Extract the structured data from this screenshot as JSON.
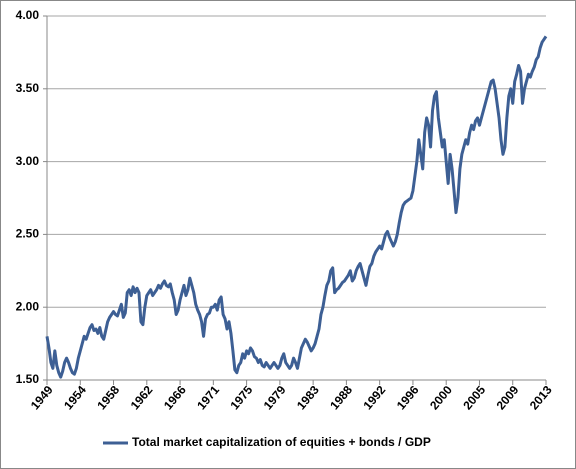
{
  "chart_data": {
    "type": "line",
    "categories": [
      "1949",
      null,
      null,
      null,
      null,
      null,
      null,
      null,
      null,
      null,
      null,
      null,
      null,
      null,
      null,
      null,
      null,
      "1954",
      null,
      null,
      null,
      null,
      null,
      null,
      null,
      null,
      null,
      null,
      null,
      null,
      null,
      null,
      null,
      null,
      "1958",
      null,
      null,
      null,
      null,
      null,
      null,
      null,
      null,
      null,
      null,
      null,
      null,
      null,
      null,
      null,
      null,
      "1962",
      null,
      null,
      null,
      null,
      null,
      null,
      null,
      null,
      null,
      null,
      null,
      null,
      null,
      null,
      null,
      null,
      "1966",
      null,
      null,
      null,
      null,
      null,
      null,
      null,
      null,
      null,
      null,
      null,
      null,
      null,
      null,
      null,
      null,
      "1971",
      null,
      null,
      null,
      null,
      null,
      null,
      null,
      null,
      null,
      null,
      null,
      null,
      null,
      null,
      null,
      null,
      "1975",
      null,
      null,
      null,
      null,
      null,
      null,
      null,
      null,
      null,
      null,
      null,
      null,
      null,
      null,
      null,
      null,
      "1979",
      null,
      null,
      null,
      null,
      null,
      null,
      null,
      null,
      null,
      null,
      null,
      null,
      null,
      null,
      null,
      null,
      "1983",
      null,
      null,
      null,
      null,
      null,
      null,
      null,
      null,
      null,
      null,
      null,
      null,
      null,
      null,
      null,
      null,
      "1988",
      null,
      null,
      null,
      null,
      null,
      null,
      null,
      null,
      null,
      null,
      null,
      null,
      null,
      null,
      null,
      null,
      "1992",
      null,
      null,
      null,
      null,
      null,
      null,
      null,
      null,
      null,
      null,
      null,
      null,
      null,
      null,
      null,
      null,
      "1996",
      null,
      null,
      null,
      null,
      null,
      null,
      null,
      null,
      null,
      null,
      null,
      null,
      null,
      null,
      null,
      null,
      "2000",
      null,
      null,
      null,
      null,
      null,
      null,
      null,
      null,
      null,
      null,
      null,
      null,
      null,
      null,
      null,
      null,
      "2005",
      null,
      null,
      null,
      null,
      null,
      null,
      null,
      null,
      null,
      null,
      null,
      null,
      null,
      null,
      null,
      null,
      "2009",
      null,
      null,
      null,
      null,
      null,
      null,
      null,
      null,
      null,
      null,
      null,
      null,
      null,
      null,
      null,
      null,
      "2013"
    ],
    "series": [
      {
        "name": "Total market capitalization of equities + bonds / GDP",
        "color": "#3d5f94",
        "values": [
          1.8,
          1.72,
          1.62,
          1.58,
          1.7,
          1.6,
          1.55,
          1.52,
          1.56,
          1.62,
          1.65,
          1.62,
          1.58,
          1.55,
          1.54,
          1.58,
          1.65,
          1.7,
          1.75,
          1.8,
          1.78,
          1.82,
          1.86,
          1.88,
          1.84,
          1.85,
          1.82,
          1.86,
          1.8,
          1.78,
          1.84,
          1.9,
          1.93,
          1.95,
          1.97,
          1.95,
          1.94,
          1.98,
          2.02,
          1.93,
          1.96,
          2.1,
          2.12,
          2.08,
          2.14,
          2.1,
          2.13,
          2.1,
          1.9,
          1.88,
          2.0,
          2.08,
          2.1,
          2.12,
          2.08,
          2.1,
          2.12,
          2.15,
          2.13,
          2.16,
          2.18,
          2.15,
          2.14,
          2.16,
          2.1,
          2.05,
          1.95,
          1.98,
          2.05,
          2.1,
          2.15,
          2.08,
          2.12,
          2.2,
          2.15,
          2.1,
          2.02,
          1.98,
          1.95,
          1.9,
          1.8,
          1.92,
          1.95,
          1.96,
          2.0,
          2.0,
          2.02,
          1.98,
          2.05,
          2.07,
          1.95,
          1.92,
          1.85,
          1.9,
          1.82,
          1.7,
          1.57,
          1.55,
          1.6,
          1.62,
          1.68,
          1.65,
          1.7,
          1.68,
          1.72,
          1.7,
          1.66,
          1.65,
          1.62,
          1.64,
          1.6,
          1.59,
          1.62,
          1.6,
          1.58,
          1.6,
          1.62,
          1.6,
          1.58,
          1.6,
          1.65,
          1.68,
          1.62,
          1.6,
          1.58,
          1.6,
          1.65,
          1.62,
          1.58,
          1.65,
          1.72,
          1.75,
          1.78,
          1.76,
          1.73,
          1.7,
          1.72,
          1.75,
          1.8,
          1.85,
          1.95,
          2.0,
          2.08,
          2.15,
          2.18,
          2.25,
          2.27,
          2.1,
          2.12,
          2.13,
          2.15,
          2.17,
          2.18,
          2.2,
          2.22,
          2.25,
          2.18,
          2.2,
          2.25,
          2.28,
          2.3,
          2.25,
          2.2,
          2.15,
          2.22,
          2.28,
          2.3,
          2.35,
          2.38,
          2.4,
          2.42,
          2.4,
          2.45,
          2.5,
          2.52,
          2.48,
          2.45,
          2.42,
          2.45,
          2.5,
          2.58,
          2.65,
          2.7,
          2.72,
          2.73,
          2.74,
          2.75,
          2.8,
          2.9,
          3.0,
          3.15,
          3.05,
          2.95,
          3.2,
          3.3,
          3.25,
          3.1,
          3.35,
          3.45,
          3.48,
          3.3,
          3.2,
          3.1,
          3.15,
          3.0,
          2.85,
          3.05,
          2.95,
          2.8,
          2.65,
          2.75,
          2.95,
          3.05,
          3.1,
          3.15,
          3.12,
          3.2,
          3.25,
          3.22,
          3.28,
          3.3,
          3.25,
          3.3,
          3.35,
          3.4,
          3.45,
          3.5,
          3.55,
          3.56,
          3.5,
          3.4,
          3.3,
          3.15,
          3.05,
          3.1,
          3.3,
          3.45,
          3.5,
          3.4,
          3.55,
          3.6,
          3.66,
          3.62,
          3.4,
          3.5,
          3.55,
          3.6,
          3.58,
          3.62,
          3.65,
          3.7,
          3.72,
          3.78,
          3.82,
          3.84,
          3.86
        ]
      }
    ],
    "ylim": [
      1.5,
      4
    ],
    "yticks": [
      {
        "value": 1.5,
        "label": "1.50"
      },
      {
        "value": 2,
        "label": "2.00"
      },
      {
        "value": 2.5,
        "label": "2.50"
      },
      {
        "value": 3,
        "label": "3.00"
      },
      {
        "value": 3.5,
        "label": "3.50"
      },
      {
        "value": 4,
        "label": "4.00"
      }
    ],
    "grid": true,
    "legend": "bottom"
  }
}
